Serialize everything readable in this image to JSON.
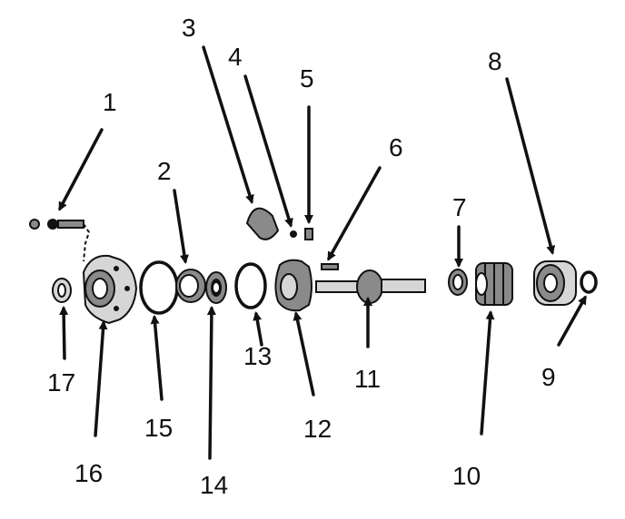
{
  "labels": {
    "l1": "1",
    "l2": "2",
    "l3": "3",
    "l4": "4",
    "l5": "5",
    "l6": "6",
    "l7a": "7",
    "l7b": "7",
    "l8": "8",
    "l9": "9",
    "l10": "10",
    "l11": "11",
    "l12": "12",
    "l13": "13",
    "l14": "14",
    "l15": "15",
    "l16": "16",
    "l17": "17"
  },
  "colors": {
    "ink": "#111111",
    "paper": "#ffffff",
    "shade": "#8a8a8a",
    "light": "#d6d6d6"
  }
}
